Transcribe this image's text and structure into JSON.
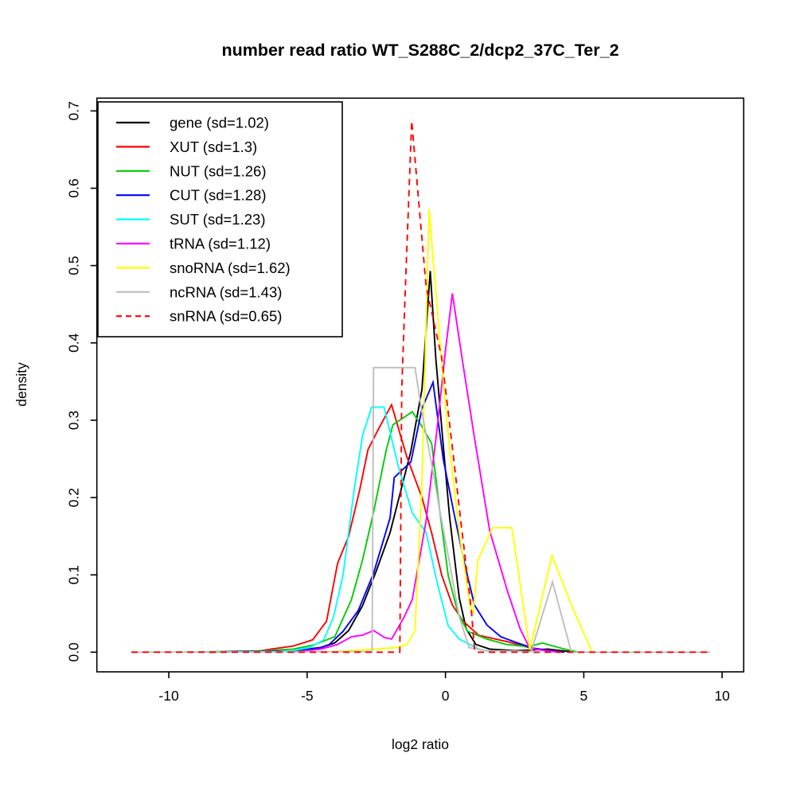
{
  "chart_data": {
    "type": "line",
    "title": "number read ratio WT_S288C_2/dcp2_37C_Ter_2",
    "xlabel": "log2 ratio",
    "ylabel": "density",
    "xlim": [
      -12.6,
      10.78
    ],
    "ylim": [
      -0.0254,
      0.7165
    ],
    "xticks": [
      -10,
      -5,
      0,
      5,
      10
    ],
    "yticks": [
      0.0,
      0.1,
      0.2,
      0.3,
      0.4,
      0.5,
      0.6,
      0.7
    ],
    "grid": false,
    "legend_position": "top-left",
    "series": [
      {
        "name": "gene (sd=1.02)",
        "color": "#000000",
        "dash": "solid",
        "points": [
          [
            -8.5,
            0
          ],
          [
            -7,
            0.001
          ],
          [
            -6,
            0.002
          ],
          [
            -5,
            0.004
          ],
          [
            -4.5,
            0.006
          ],
          [
            -4,
            0.012
          ],
          [
            -3.5,
            0.028
          ],
          [
            -3,
            0.06
          ],
          [
            -2.5,
            0.105
          ],
          [
            -2,
            0.155
          ],
          [
            -1.5,
            0.225
          ],
          [
            -1.25,
            0.26
          ],
          [
            -0.85,
            0.34
          ],
          [
            -0.55,
            0.493
          ],
          [
            -0.35,
            0.38
          ],
          [
            -0.1,
            0.275
          ],
          [
            0.15,
            0.175
          ],
          [
            0.5,
            0.07
          ],
          [
            0.75,
            0.03
          ],
          [
            1.1,
            0.01
          ],
          [
            1.6,
            0.004
          ],
          [
            2.5,
            0.002
          ],
          [
            3.2,
            0.003
          ],
          [
            3.7,
            0.004
          ],
          [
            4.2,
            0.002
          ],
          [
            4.7,
            0
          ]
        ]
      },
      {
        "name": "XUT (sd=1.3)",
        "color": "#FF0000",
        "dash": "solid",
        "points": [
          [
            -7,
            0
          ],
          [
            -6.3,
            0.004
          ],
          [
            -5.5,
            0.008
          ],
          [
            -4.8,
            0.016
          ],
          [
            -4.3,
            0.04
          ],
          [
            -3.9,
            0.115
          ],
          [
            -3.5,
            0.15
          ],
          [
            -3.1,
            0.21
          ],
          [
            -2.8,
            0.262
          ],
          [
            -2.4,
            0.29
          ],
          [
            -1.95,
            0.32
          ],
          [
            -1.4,
            0.253
          ],
          [
            -0.85,
            0.2
          ],
          [
            -0.5,
            0.154
          ],
          [
            -0.13,
            0.099
          ],
          [
            0.25,
            0.061
          ],
          [
            0.64,
            0.04
          ],
          [
            1.2,
            0.022
          ],
          [
            2.3,
            0.013
          ],
          [
            3,
            0.006
          ],
          [
            3.6,
            0.003
          ],
          [
            4.3,
            0
          ]
        ]
      },
      {
        "name": "NUT (sd=1.26)",
        "color": "#00CD00",
        "dash": "solid",
        "points": [
          [
            -9.2,
            0
          ],
          [
            -8,
            0.001
          ],
          [
            -6.5,
            0.002
          ],
          [
            -5.5,
            0.004
          ],
          [
            -4.8,
            0.009
          ],
          [
            -4,
            0.02
          ],
          [
            -3.4,
            0.068
          ],
          [
            -3,
            0.119
          ],
          [
            -2.6,
            0.181
          ],
          [
            -2.15,
            0.26
          ],
          [
            -1.9,
            0.294
          ],
          [
            -1.2,
            0.311
          ],
          [
            -0.85,
            0.292
          ],
          [
            -0.5,
            0.27
          ],
          [
            -0.2,
            0.181
          ],
          [
            0.1,
            0.099
          ],
          [
            0.45,
            0.051
          ],
          [
            0.8,
            0.027
          ],
          [
            1.5,
            0.017
          ],
          [
            2.2,
            0.01
          ],
          [
            3,
            0.007
          ],
          [
            3.5,
            0.012
          ],
          [
            4.2,
            0.005
          ],
          [
            4.8,
            0
          ]
        ]
      },
      {
        "name": "CUT (sd=1.28)",
        "color": "#0000FF",
        "dash": "solid",
        "points": [
          [
            -8.6,
            0
          ],
          [
            -7.5,
            0.001
          ],
          [
            -6.5,
            0.001
          ],
          [
            -5.5,
            0.002
          ],
          [
            -4.6,
            0.005
          ],
          [
            -4.2,
            0.01
          ],
          [
            -3.7,
            0.027
          ],
          [
            -3.15,
            0.054
          ],
          [
            -2.6,
            0.102
          ],
          [
            -2,
            0.174
          ],
          [
            -1.85,
            0.226
          ],
          [
            -1.25,
            0.246
          ],
          [
            -0.85,
            0.315
          ],
          [
            -0.45,
            0.349
          ],
          [
            -0.08,
            0.25
          ],
          [
            0.3,
            0.181
          ],
          [
            0.7,
            0.113
          ],
          [
            1.05,
            0.061
          ],
          [
            1.5,
            0.035
          ],
          [
            2,
            0.02
          ],
          [
            2.6,
            0.012
          ],
          [
            3.2,
            0.005
          ],
          [
            3.8,
            0.002
          ],
          [
            4.3,
            0
          ]
        ]
      },
      {
        "name": "SUT (sd=1.23)",
        "color": "#00FFFF",
        "dash": "solid",
        "points": [
          [
            -6.2,
            0
          ],
          [
            -5.4,
            0.003
          ],
          [
            -4.9,
            0.006
          ],
          [
            -4.4,
            0.016
          ],
          [
            -4.05,
            0.045
          ],
          [
            -3.7,
            0.1
          ],
          [
            -3.3,
            0.21
          ],
          [
            -3,
            0.28
          ],
          [
            -2.67,
            0.317
          ],
          [
            -2.22,
            0.317
          ],
          [
            -1.7,
            0.24
          ],
          [
            -1.2,
            0.18
          ],
          [
            -0.7,
            0.155
          ],
          [
            -0.3,
            0.09
          ],
          [
            0.1,
            0.034
          ],
          [
            0.5,
            0.017
          ],
          [
            1.2,
            0.004
          ],
          [
            1.7,
            0
          ]
        ]
      },
      {
        "name": "tRNA (sd=1.12)",
        "color": "#FF00FF",
        "dash": "solid",
        "points": [
          [
            -5.5,
            0
          ],
          [
            -4.5,
            0.004
          ],
          [
            -3.9,
            0.01
          ],
          [
            -3.4,
            0.02
          ],
          [
            -3,
            0.022
          ],
          [
            -2.6,
            0.028
          ],
          [
            -2.2,
            0.019
          ],
          [
            -1.95,
            0.017
          ],
          [
            -1.5,
            0.045
          ],
          [
            -1.2,
            0.068
          ],
          [
            -0.7,
            0.17
          ],
          [
            -0.3,
            0.29
          ],
          [
            0,
            0.39
          ],
          [
            0.25,
            0.464
          ],
          [
            0.6,
            0.38
          ],
          [
            1.05,
            0.277
          ],
          [
            1.6,
            0.157
          ],
          [
            2.25,
            0.078
          ],
          [
            2.7,
            0.03
          ],
          [
            3.05,
            0.005
          ],
          [
            3.6,
            0.002
          ],
          [
            4.1,
            0
          ]
        ]
      },
      {
        "name": "snoRNA (sd=1.62)",
        "color": "#FFFF00",
        "dash": "solid",
        "points": [
          [
            -4.6,
            0
          ],
          [
            -3.5,
            0.002
          ],
          [
            -2.5,
            0.004
          ],
          [
            -1.8,
            0.006
          ],
          [
            -1.4,
            0.01
          ],
          [
            -1.1,
            0.028
          ],
          [
            -0.85,
            0.22
          ],
          [
            -0.59,
            0.573
          ],
          [
            -0.2,
            0.4
          ],
          [
            0.11,
            0.277
          ],
          [
            0.49,
            0.157
          ],
          [
            0.88,
            0.061
          ],
          [
            1,
            0.05
          ],
          [
            1.17,
            0.119
          ],
          [
            1.7,
            0.161
          ],
          [
            2.4,
            0.161
          ],
          [
            3.05,
            0.003
          ],
          [
            3.85,
            0.125
          ],
          [
            4.6,
            0.057
          ],
          [
            5.3,
            0
          ]
        ]
      },
      {
        "name": "ncRNA (sd=1.43)",
        "color": "#BEBEBE",
        "dash": "solid",
        "points": [
          [
            -11.35,
            0
          ],
          [
            -2.65,
            0.001
          ],
          [
            -2.6,
            0.368
          ],
          [
            -1.1,
            0.368
          ],
          [
            -0.85,
            0.31
          ],
          [
            -0.5,
            0.243
          ],
          [
            -0.18,
            0.178
          ],
          [
            0.16,
            0.113
          ],
          [
            0.49,
            0.047
          ],
          [
            0.85,
            0.006
          ],
          [
            1.5,
            0.002
          ],
          [
            3.1,
            0.001
          ],
          [
            3.87,
            0.091
          ],
          [
            4.55,
            0
          ],
          [
            9.56,
            0
          ]
        ]
      },
      {
        "name": "snRNA (sd=0.65)",
        "color": "#FF0000",
        "dash": "dashed",
        "points": [
          [
            -11.35,
            0
          ],
          [
            -1.65,
            0
          ],
          [
            -1.58,
            0.34
          ],
          [
            -1.45,
            0.47
          ],
          [
            -1.22,
            0.687
          ],
          [
            -0.7,
            0.473
          ],
          [
            -0.13,
            0.38
          ],
          [
            0.21,
            0.277
          ],
          [
            0.54,
            0.174
          ],
          [
            0.93,
            0.056
          ],
          [
            1.05,
            0.004
          ],
          [
            1.1,
            0
          ],
          [
            9.56,
            0
          ]
        ]
      }
    ]
  }
}
